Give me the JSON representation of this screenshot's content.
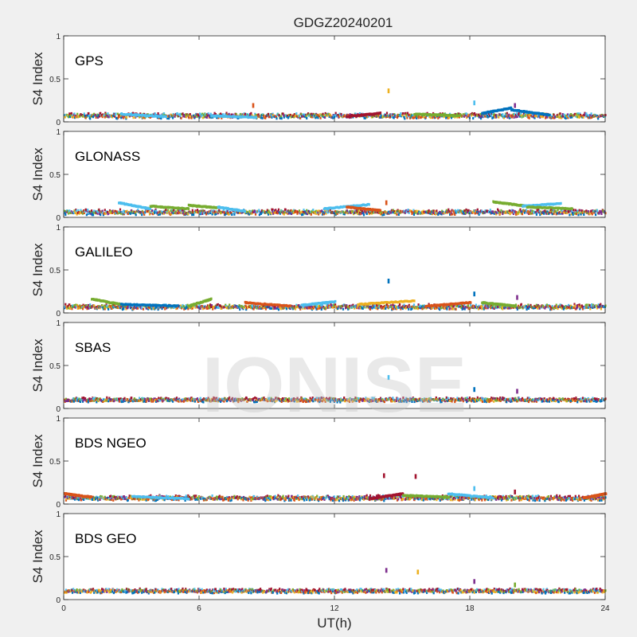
{
  "chart_data": {
    "type": "scatter",
    "title": "GDGZ20240201",
    "xlabel": "UT(h)",
    "ylabel": "S4 Index",
    "xlim": [
      0,
      24
    ],
    "ylim": [
      0,
      1
    ],
    "x_ticks": [
      "0",
      "6",
      "12",
      "18",
      "24"
    ],
    "y_ticks": [
      "0",
      "0.5",
      "1"
    ],
    "grid": false,
    "watermark": "IONISE",
    "series_colors": [
      "#0072BD",
      "#D95319",
      "#EDB120",
      "#7E2F8E",
      "#77AC30",
      "#4DBEEE",
      "#A2142F"
    ],
    "panels": [
      {
        "label": "GPS",
        "baseline": 0.07,
        "spread": 0.02,
        "features": [
          {
            "x": [
              2.5,
              4.5
            ],
            "y": [
              0.09,
              0.06
            ],
            "series": 5
          },
          {
            "x": [
              6.5,
              8.5
            ],
            "y": [
              0.07,
              0.05
            ],
            "series": 5
          },
          {
            "x": [
              12.5,
              14.0
            ],
            "y": [
              0.06,
              0.1
            ],
            "series": 6
          },
          {
            "x": [
              15.5,
              17.5
            ],
            "y": [
              0.09,
              0.07
            ],
            "series": 4
          },
          {
            "x": [
              18.5,
              19.8
            ],
            "y": [
              0.1,
              0.16
            ],
            "series": 0
          },
          {
            "x": [
              19.8,
              21.5
            ],
            "y": [
              0.14,
              0.08
            ],
            "series": 0
          }
        ],
        "spikes": [
          {
            "x": 14.4,
            "y": 0.36,
            "series": 2
          },
          {
            "x": 18.2,
            "y": 0.22,
            "series": 5
          },
          {
            "x": 20.0,
            "y": 0.19,
            "series": 3
          },
          {
            "x": 8.4,
            "y": 0.19,
            "series": 1
          }
        ]
      },
      {
        "label": "GLONASS",
        "baseline": 0.06,
        "spread": 0.02,
        "features": [
          {
            "x": [
              2.4,
              3.8
            ],
            "y": [
              0.17,
              0.1
            ],
            "series": 5
          },
          {
            "x": [
              3.8,
              5.5
            ],
            "y": [
              0.13,
              0.1
            ],
            "series": 4
          },
          {
            "x": [
              5.5,
              6.8
            ],
            "y": [
              0.14,
              0.11
            ],
            "series": 4
          },
          {
            "x": [
              6.8,
              8.0
            ],
            "y": [
              0.12,
              0.07
            ],
            "series": 5
          },
          {
            "x": [
              11.5,
              13.5
            ],
            "y": [
              0.1,
              0.15
            ],
            "series": 5
          },
          {
            "x": [
              12.5,
              14.0
            ],
            "y": [
              0.12,
              0.08
            ],
            "series": 1
          },
          {
            "x": [
              19.0,
              20.5
            ],
            "y": [
              0.18,
              0.13
            ],
            "series": 4
          },
          {
            "x": [
              20.3,
              22.0
            ],
            "y": [
              0.13,
              0.16
            ],
            "series": 5
          },
          {
            "x": [
              20.5,
              22.5
            ],
            "y": [
              0.12,
              0.1
            ],
            "series": 4
          }
        ],
        "spikes": [
          {
            "x": 14.3,
            "y": 0.17,
            "series": 1
          }
        ]
      },
      {
        "label": "GALILEO",
        "baseline": 0.07,
        "spread": 0.02,
        "features": [
          {
            "x": [
              1.2,
              2.7
            ],
            "y": [
              0.16,
              0.09
            ],
            "series": 4
          },
          {
            "x": [
              2.5,
              5.0
            ],
            "y": [
              0.1,
              0.08
            ],
            "series": 0
          },
          {
            "x": [
              5.5,
              6.5
            ],
            "y": [
              0.08,
              0.16
            ],
            "series": 4
          },
          {
            "x": [
              8.0,
              10.0
            ],
            "y": [
              0.12,
              0.08
            ],
            "series": 1
          },
          {
            "x": [
              10.5,
              12.0
            ],
            "y": [
              0.09,
              0.13
            ],
            "series": 5
          },
          {
            "x": [
              13.0,
              15.5
            ],
            "y": [
              0.1,
              0.14
            ],
            "series": 2
          },
          {
            "x": [
              16.0,
              18.0
            ],
            "y": [
              0.08,
              0.12
            ],
            "series": 1
          },
          {
            "x": [
              18.5,
              20.0
            ],
            "y": [
              0.12,
              0.08
            ],
            "series": 4
          }
        ],
        "spikes": [
          {
            "x": 14.4,
            "y": 0.37,
            "series": 0
          },
          {
            "x": 18.2,
            "y": 0.22,
            "series": 0
          },
          {
            "x": 20.1,
            "y": 0.18,
            "series": 3
          }
        ]
      },
      {
        "label": "SBAS",
        "baseline": 0.1,
        "spread": 0.015,
        "features": [],
        "spikes": [
          {
            "x": 14.4,
            "y": 0.36,
            "series": 5
          },
          {
            "x": 18.2,
            "y": 0.22,
            "series": 0
          },
          {
            "x": 20.1,
            "y": 0.2,
            "series": 3
          }
        ]
      },
      {
        "label": "BDS NGEO",
        "baseline": 0.07,
        "spread": 0.02,
        "features": [
          {
            "x": [
              0.0,
              1.2
            ],
            "y": [
              0.12,
              0.08
            ],
            "series": 1
          },
          {
            "x": [
              3.0,
              5.5
            ],
            "y": [
              0.09,
              0.06
            ],
            "series": 5
          },
          {
            "x": [
              13.5,
              15.0
            ],
            "y": [
              0.06,
              0.12
            ],
            "series": 6
          },
          {
            "x": [
              15.0,
              17.0
            ],
            "y": [
              0.1,
              0.08
            ],
            "series": 4
          },
          {
            "x": [
              17.0,
              19.0
            ],
            "y": [
              0.12,
              0.07
            ],
            "series": 5
          },
          {
            "x": [
              23.0,
              24.0
            ],
            "y": [
              0.07,
              0.12
            ],
            "series": 1
          }
        ],
        "spikes": [
          {
            "x": 14.2,
            "y": 0.33,
            "series": 6
          },
          {
            "x": 15.6,
            "y": 0.32,
            "series": 6
          },
          {
            "x": 18.2,
            "y": 0.18,
            "series": 5
          },
          {
            "x": 20.0,
            "y": 0.14,
            "series": 6
          }
        ]
      },
      {
        "label": "BDS GEO",
        "baseline": 0.1,
        "spread": 0.015,
        "features": [],
        "spikes": [
          {
            "x": 14.3,
            "y": 0.34,
            "series": 3
          },
          {
            "x": 15.7,
            "y": 0.32,
            "series": 2
          },
          {
            "x": 18.2,
            "y": 0.21,
            "series": 3
          },
          {
            "x": 20.0,
            "y": 0.17,
            "series": 4
          }
        ]
      }
    ]
  }
}
